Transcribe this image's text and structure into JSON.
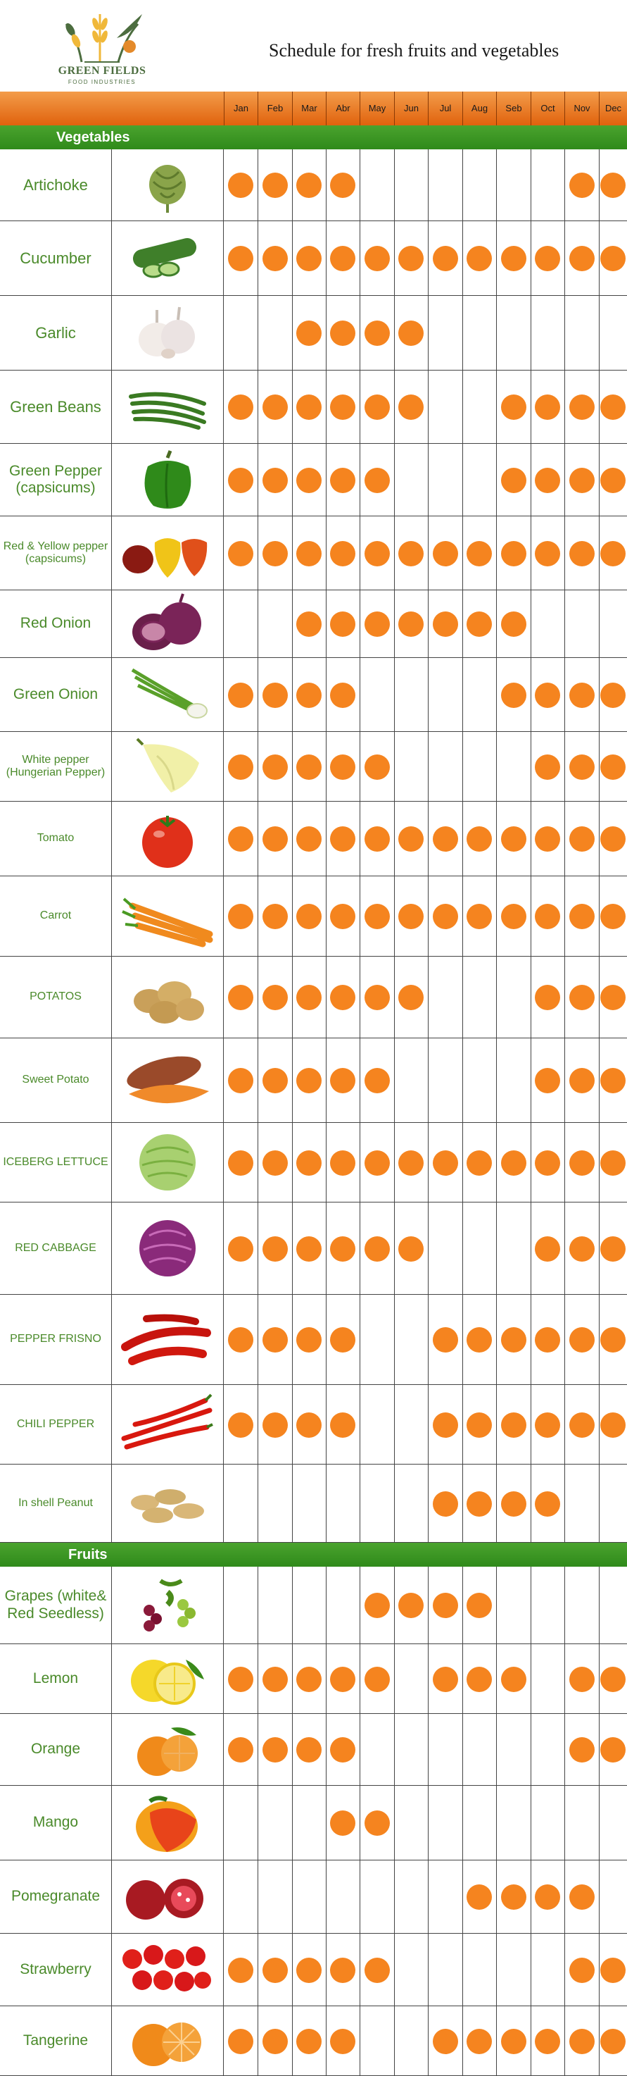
{
  "header": {
    "brand_name": "GREEN FIELDS",
    "brand_sub": "FOOD INDUSTRIES",
    "title": "Schedule for fresh fruits and vegetables"
  },
  "months": [
    "Jan",
    "Feb",
    "Mar",
    "Abr",
    "May",
    "Jun",
    "Jul",
    "Aug",
    "Seb",
    "Oct",
    "Nov",
    "Dec"
  ],
  "colors": {
    "dot": "#f5841f",
    "label": "#4a8a2a",
    "section": "#3a9a22",
    "month_bar": "#ef7d1f"
  },
  "sections": [
    {
      "label": "Vegetables",
      "items": [
        {
          "name": "Artichoke",
          "icon": "artichoke-icon",
          "months": [
            1,
            1,
            1,
            1,
            0,
            0,
            0,
            0,
            0,
            0,
            1,
            1
          ]
        },
        {
          "name": "Cucumber",
          "icon": "cucumber-icon",
          "months": [
            1,
            1,
            1,
            1,
            1,
            1,
            1,
            1,
            1,
            1,
            1,
            1
          ]
        },
        {
          "name": "Garlic",
          "icon": "garlic-icon",
          "months": [
            0,
            0,
            1,
            1,
            1,
            1,
            0,
            0,
            0,
            0,
            0,
            0
          ]
        },
        {
          "name": "Green Beans",
          "icon": "green-beans-icon",
          "months": [
            1,
            1,
            1,
            1,
            1,
            1,
            0,
            0,
            1,
            1,
            1,
            1
          ]
        },
        {
          "name": "Green Pepper (capsicums)",
          "icon": "green-pepper-icon",
          "months": [
            1,
            1,
            1,
            1,
            1,
            0,
            0,
            0,
            1,
            1,
            1,
            1
          ]
        },
        {
          "name": "Red & Yellow pepper (capsicums)",
          "icon": "red-yellow-pepper-icon",
          "months": [
            1,
            1,
            1,
            1,
            1,
            1,
            1,
            1,
            1,
            1,
            1,
            1
          ]
        },
        {
          "name": "Red Onion",
          "icon": "red-onion-icon",
          "months": [
            0,
            0,
            1,
            1,
            1,
            1,
            1,
            1,
            1,
            0,
            0,
            0
          ]
        },
        {
          "name": "Green Onion",
          "icon": "green-onion-icon",
          "months": [
            1,
            1,
            1,
            1,
            0,
            0,
            0,
            0,
            1,
            1,
            1,
            1
          ]
        },
        {
          "name": "White pepper (Hungerian Pepper)",
          "icon": "white-pepper-icon",
          "months": [
            1,
            1,
            1,
            1,
            1,
            0,
            0,
            0,
            0,
            1,
            1,
            1
          ]
        },
        {
          "name": "Tomato",
          "icon": "tomato-icon",
          "months": [
            1,
            1,
            1,
            1,
            1,
            1,
            1,
            1,
            1,
            1,
            1,
            1
          ]
        },
        {
          "name": "Carrot",
          "icon": "carrot-icon",
          "months": [
            1,
            1,
            1,
            1,
            1,
            1,
            1,
            1,
            1,
            1,
            1,
            1
          ]
        },
        {
          "name": "POTATOS",
          "icon": "potato-icon",
          "months": [
            1,
            1,
            1,
            1,
            1,
            1,
            0,
            0,
            0,
            1,
            1,
            1
          ]
        },
        {
          "name": "Sweet Potato",
          "icon": "sweet-potato-icon",
          "months": [
            1,
            1,
            1,
            1,
            1,
            0,
            0,
            0,
            0,
            1,
            1,
            1
          ]
        },
        {
          "name": "ICEBERG LETTUCE",
          "icon": "lettuce-icon",
          "months": [
            1,
            1,
            1,
            1,
            1,
            1,
            1,
            1,
            1,
            1,
            1,
            1
          ]
        },
        {
          "name": "RED CABBAGE",
          "icon": "red-cabbage-icon",
          "months": [
            1,
            1,
            1,
            1,
            1,
            1,
            0,
            0,
            0,
            1,
            1,
            1
          ]
        },
        {
          "name": "PEPPER FRISNO",
          "icon": "pepper-frisno-icon",
          "months": [
            1,
            1,
            1,
            1,
            0,
            0,
            1,
            1,
            1,
            1,
            1,
            1
          ]
        },
        {
          "name": "CHILI PEPPER",
          "icon": "chili-pepper-icon",
          "months": [
            1,
            1,
            1,
            1,
            0,
            0,
            1,
            1,
            1,
            1,
            1,
            1
          ]
        },
        {
          "name": "In shell Peanut",
          "icon": "peanut-icon",
          "months": [
            0,
            0,
            0,
            0,
            0,
            0,
            1,
            1,
            1,
            1,
            0,
            0
          ]
        }
      ]
    },
    {
      "label": "Fruits",
      "items": [
        {
          "name": "Grapes (white& Red Seedless)",
          "icon": "grapes-icon",
          "months": [
            0,
            0,
            0,
            0,
            1,
            1,
            1,
            1,
            0,
            0,
            0,
            0
          ]
        },
        {
          "name": "Lemon",
          "icon": "lemon-icon",
          "months": [
            1,
            1,
            1,
            1,
            1,
            0,
            1,
            1,
            1,
            0,
            1,
            1
          ]
        },
        {
          "name": "Orange",
          "icon": "orange-icon",
          "months": [
            1,
            1,
            1,
            1,
            0,
            0,
            0,
            0,
            0,
            0,
            1,
            1
          ]
        },
        {
          "name": "Mango",
          "icon": "mango-icon",
          "months": [
            0,
            0,
            0,
            1,
            1,
            0,
            0,
            0,
            0,
            0,
            0,
            0
          ]
        },
        {
          "name": "Pomegranate",
          "icon": "pomegranate-icon",
          "months": [
            0,
            0,
            0,
            0,
            0,
            0,
            0,
            1,
            1,
            1,
            1,
            0
          ]
        },
        {
          "name": "Strawberry",
          "icon": "strawberry-icon",
          "months": [
            1,
            1,
            1,
            1,
            1,
            0,
            0,
            0,
            0,
            0,
            1,
            1
          ]
        },
        {
          "name": "Tangerine",
          "icon": "tangerine-icon",
          "months": [
            1,
            1,
            1,
            1,
            0,
            0,
            1,
            1,
            1,
            1,
            1,
            1
          ]
        }
      ]
    }
  ]
}
